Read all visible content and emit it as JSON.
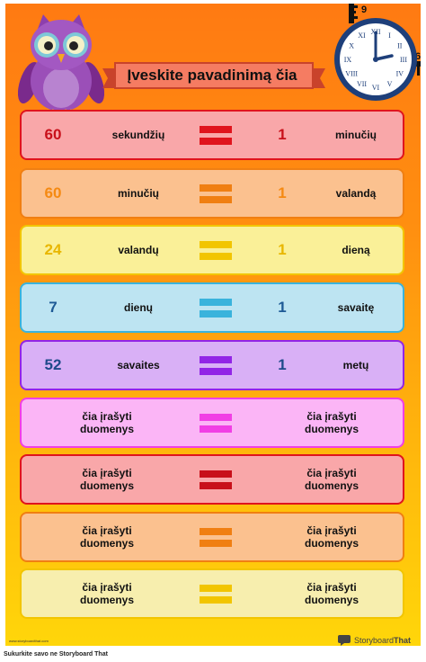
{
  "title": "Įveskite pavadinimą čia",
  "rows": [
    {
      "left_value": "60",
      "left_unit": "sekundžių",
      "right_value": "1",
      "right_unit": "minučių",
      "color": "#e0141d",
      "num_color": "#c8101a"
    },
    {
      "left_value": "60",
      "left_unit": "minučių",
      "right_value": "1",
      "right_unit": "valandą",
      "color": "#f07f12",
      "num_color": "#f58a12"
    },
    {
      "left_value": "24",
      "left_unit": "valandų",
      "right_value": "1",
      "right_unit": "dieną",
      "color": "#f2c500",
      "num_color": "#e8b600"
    },
    {
      "left_value": "7",
      "left_unit": "dienų",
      "right_value": "1",
      "right_unit": "savaitę",
      "color": "#3ab3dc",
      "num_color": "#1e5a96"
    },
    {
      "left_value": "52",
      "left_unit": "savaites",
      "right_value": "1",
      "right_unit": "metų",
      "color": "#9225e6",
      "num_color": "#1e4a8a"
    }
  ],
  "placeholder_rows": [
    {
      "left_line1": "čia įrašyti",
      "left_line2": "duomenys",
      "right_line1": "čia įrašyti",
      "right_line2": "duomenys",
      "color": "#f13fe5"
    },
    {
      "left_line1": "čia įrašyti",
      "left_line2": "duomenys",
      "right_line1": "čia įrašyti",
      "right_line2": "duomenys",
      "color": "#c8101a"
    },
    {
      "left_line1": "čia įrašyti",
      "left_line2": "duomenys",
      "right_line1": "čia įrašyti",
      "right_line2": "duomenys",
      "color": "#f07f12"
    },
    {
      "left_line1": "čia įrašyti",
      "left_line2": "duomenys",
      "right_line1": "čia įrašyti",
      "right_line2": "duomenys",
      "color": "#f2c500"
    }
  ],
  "clock": {
    "numerals": [
      "XII",
      "I",
      "II",
      "III",
      "IV",
      "V",
      "VI",
      "VII",
      "VIII",
      "IX",
      "X",
      "XI"
    ],
    "tape_top": "9",
    "tape_right": "6"
  },
  "website": "www.storyboardthat.com",
  "logo": {
    "part1": "Storyboard",
    "part2": "That"
  },
  "footer": "Sukurkite savo ne Storyboard That"
}
